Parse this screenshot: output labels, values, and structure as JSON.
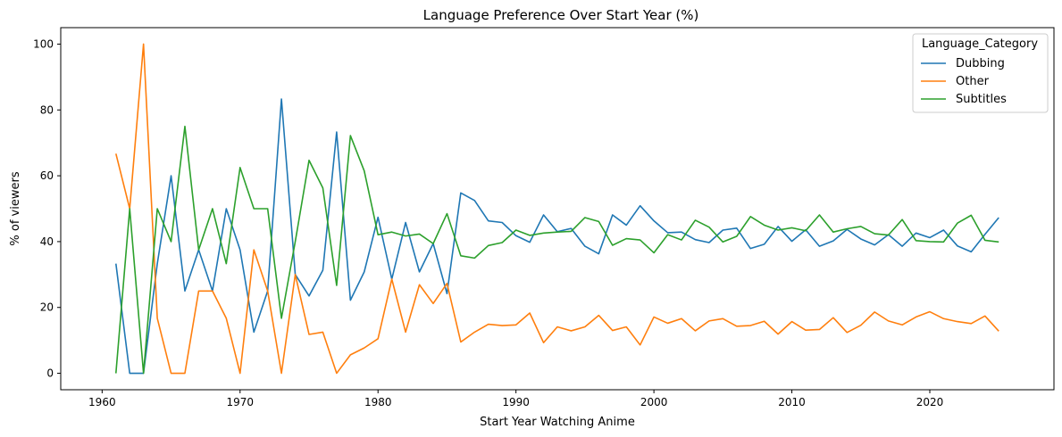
{
  "chart_data": {
    "type": "line",
    "title": "Language Preference Over Start Year (%)",
    "xlabel": "Start Year Watching Anime",
    "ylabel": "% of viewers",
    "xlim": [
      1957,
      2029
    ],
    "ylim": [
      -5,
      105
    ],
    "xticks": [
      1960,
      1970,
      1980,
      1990,
      2000,
      2010,
      2020
    ],
    "yticks": [
      0,
      20,
      40,
      60,
      80,
      100
    ],
    "grid": false,
    "legend": {
      "title": "Language_Category",
      "placement": "top-right"
    },
    "x": [
      1961,
      1962,
      1963,
      1964,
      1965,
      1966,
      1967,
      1968,
      1969,
      1970,
      1971,
      1972,
      1973,
      1974,
      1975,
      1976,
      1977,
      1978,
      1979,
      1980,
      1981,
      1982,
      1983,
      1984,
      1985,
      1986,
      1987,
      1988,
      1989,
      1990,
      1991,
      1992,
      1993,
      1994,
      1995,
      1996,
      1997,
      1998,
      1999,
      2000,
      2001,
      2002,
      2003,
      2004,
      2005,
      2006,
      2007,
      2008,
      2009,
      2010,
      2011,
      2012,
      2013,
      2014,
      2015,
      2016,
      2017,
      2018,
      2019,
      2020,
      2021,
      2022,
      2023,
      2024,
      2025
    ],
    "series": [
      {
        "name": "Dubbing",
        "color": "#1f77b4",
        "values": [
          33.3,
          0,
          0,
          33.3,
          60,
          25,
          37.5,
          25,
          50,
          37.5,
          12.5,
          25,
          83.3,
          30,
          23.5,
          31.3,
          73.3,
          22.2,
          30.8,
          47.4,
          28.6,
          45.8,
          30.8,
          39.4,
          24.2,
          54.8,
          52.5,
          46.3,
          45.8,
          41.8,
          39.8,
          48.1,
          43,
          44,
          38.6,
          36.3,
          48.1,
          45,
          50.9,
          46.3,
          42.7,
          42.9,
          40.6,
          39.7,
          43.5,
          44.1,
          37.9,
          39.2,
          44.6,
          40.1,
          43.6,
          38.6,
          40.2,
          43.7,
          40.8,
          39,
          42.1,
          38.6,
          42.6,
          41.2,
          43.5,
          38.7,
          36.9,
          42.2,
          47.3
        ]
      },
      {
        "name": "Other",
        "color": "#ff7f0e",
        "values": [
          66.7,
          50,
          100,
          16.7,
          0,
          0,
          25,
          25,
          16.7,
          0,
          37.5,
          25,
          0,
          30,
          11.8,
          12.5,
          0,
          5.6,
          7.7,
          10.5,
          28.6,
          12.5,
          26.9,
          21.2,
          27.3,
          9.5,
          12.5,
          14.9,
          14.5,
          14.7,
          18.3,
          9.3,
          14.1,
          12.9,
          14.1,
          17.6,
          13,
          14.1,
          8.6,
          17.1,
          15.2,
          16.6,
          12.9,
          15.9,
          16.6,
          14.3,
          14.5,
          15.8,
          11.9,
          15.7,
          13.1,
          13.3,
          16.9,
          12.4,
          14.6,
          18.6,
          15.9,
          14.7,
          17.1,
          18.7,
          16.6,
          15.7,
          15.1,
          17.4,
          12.8
        ]
      },
      {
        "name": "Subtitles",
        "color": "#2ca02c",
        "values": [
          0,
          50,
          0,
          50,
          40,
          75,
          37.5,
          50,
          33.3,
          62.5,
          50,
          50,
          16.7,
          40,
          64.7,
          56.3,
          26.7,
          72.2,
          61.5,
          42.1,
          42.9,
          41.7,
          42.3,
          39.4,
          48.5,
          35.7,
          35,
          38.8,
          39.7,
          43.5,
          41.9,
          42.6,
          42.9,
          43.1,
          47.3,
          46.1,
          38.9,
          40.9,
          40.5,
          36.6,
          42.1,
          40.5,
          46.5,
          44.4,
          39.9,
          41.6,
          47.6,
          45,
          43.5,
          44.2,
          43.3,
          48.1,
          42.9,
          43.9,
          44.6,
          42.4,
          42,
          46.7,
          40.3,
          40,
          39.9,
          45.6,
          48,
          40.4,
          39.9
        ]
      }
    ]
  }
}
